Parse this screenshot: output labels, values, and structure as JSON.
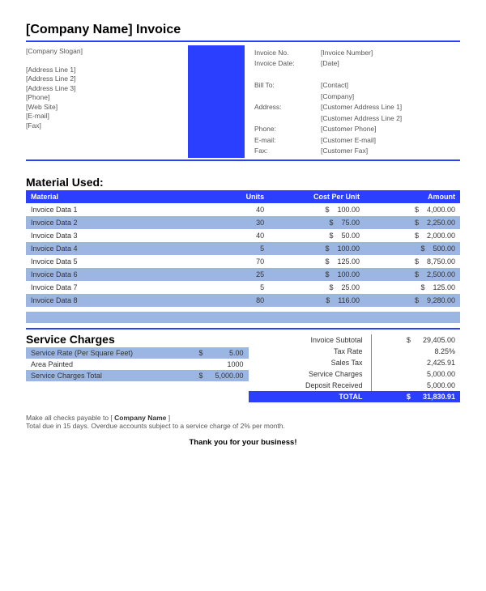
{
  "colors": {
    "accent": "#2a3fff",
    "band_light": "#9cb6e4",
    "text": "#333333",
    "muted": "#555555",
    "bg": "#ffffff"
  },
  "typography": {
    "title_fontsize": 16,
    "section_fontsize": 14,
    "body_fontsize": 9,
    "small_fontsize": 8.5,
    "font_family": "Arial"
  },
  "header": {
    "title": "[Company Name] Invoice",
    "slogan": "[Company Slogan]",
    "address1": "[Address Line 1]",
    "address2": "[Address Line 2]",
    "address3": "[Address Line 3]",
    "phone": "[Phone]",
    "website": "[Web Site]",
    "email": "[E-mail]",
    "fax": "[Fax]"
  },
  "invoice_meta": {
    "no_label": "Invoice No.",
    "no_value": "[Invoice Number]",
    "date_label": "Invoice Date:",
    "date_value": "[Date]",
    "billto_label": "Bill To:",
    "billto_value": "[Contact]",
    "company_value": "[Company]",
    "address_label": "Address:",
    "addr1": "[Customer Address Line 1]",
    "addr2": "[Customer Address Line 2]",
    "phone_label": "Phone:",
    "phone_value": "[Customer Phone]",
    "email_label": "E-mail:",
    "email_value": "[Customer E-mail]",
    "fax_label": "Fax:",
    "fax_value": "[Customer Fax]"
  },
  "materials": {
    "heading": "Material Used:",
    "columns": {
      "c1": "Material",
      "c2": "Units",
      "c3": "Cost Per Unit",
      "c4": "Amount"
    },
    "col_align": [
      "left",
      "right",
      "right",
      "right"
    ],
    "currency": "$",
    "rows": [
      {
        "m": "Invoice Data 1",
        "u": "40",
        "cpu": "100.00",
        "amt": "4,000.00"
      },
      {
        "m": "Invoice Data 2",
        "u": "30",
        "cpu": "75.00",
        "amt": "2,250.00"
      },
      {
        "m": "Invoice Data 3",
        "u": "40",
        "cpu": "50.00",
        "amt": "2,000.00"
      },
      {
        "m": "Invoice Data 4",
        "u": "5",
        "cpu": "100.00",
        "amt": "500.00"
      },
      {
        "m": "Invoice Data 5",
        "u": "70",
        "cpu": "125.00",
        "amt": "8,750.00"
      },
      {
        "m": "Invoice Data 6",
        "u": "25",
        "cpu": "100.00",
        "amt": "2,500.00"
      },
      {
        "m": "Invoice Data 7",
        "u": "5",
        "cpu": "25.00",
        "amt": "125.00"
      },
      {
        "m": "Invoice Data 8",
        "u": "80",
        "cpu": "116.00",
        "amt": "9,280.00"
      }
    ]
  },
  "service": {
    "heading": "Service Charges",
    "rate_label": "Service Rate (Per Square Feet)",
    "rate_cur": "$",
    "rate_val": "5.00",
    "area_label": "Area Painted",
    "area_val": "1000",
    "total_label": "Service Charges Total",
    "total_cur": "$",
    "total_val": "5,000.00"
  },
  "summary": {
    "subtotal_label": "Invoice Subtotal",
    "subtotal_cur": "$",
    "subtotal_val": "29,405.00",
    "taxrate_label": "Tax Rate",
    "taxrate_val": "8.25%",
    "salestax_label": "Sales Tax",
    "salestax_val": "2,425.91",
    "svc_label": "Service Charges",
    "svc_val": "5,000.00",
    "deposit_label": "Deposit Received",
    "deposit_val": "5,000.00",
    "total_label": "TOTAL",
    "total_cur": "$",
    "total_val": "31,830.91"
  },
  "footer": {
    "line1_pre": "Make all checks payable to [ ",
    "line1_bold": "Company Name",
    "line1_post": " ]",
    "line2": "Total due in 15 days. Overdue accounts subject to a service charge of 2% per month.",
    "thanks": "Thank you for your business!"
  }
}
